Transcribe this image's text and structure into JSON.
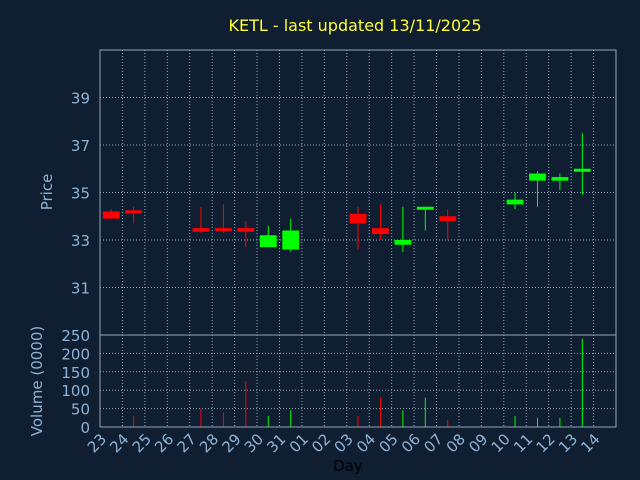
{
  "chart_data": {
    "type": "candlestick",
    "title": "KETL - last updated 13/11/2025",
    "xlabel": "Day",
    "price_panel": {
      "ylabel": "Price",
      "ylim": [
        29.0,
        41.0
      ],
      "yticks": [
        31,
        33,
        35,
        37,
        39
      ]
    },
    "volume_panel": {
      "ylabel": "Volume (0000)",
      "ylim": [
        0,
        250
      ],
      "yticks": [
        0,
        50,
        100,
        150,
        200,
        250
      ]
    },
    "days": [
      "23",
      "24",
      "25",
      "26",
      "27",
      "28",
      "29",
      "30",
      "31",
      "01",
      "02",
      "03",
      "04",
      "05",
      "06",
      "07",
      "08",
      "09",
      "10",
      "11",
      "12",
      "13",
      "14"
    ],
    "candles": [
      {
        "day": "23",
        "open": 34.2,
        "close": 33.9,
        "high": 34.3,
        "low": 33.9,
        "volume": 0
      },
      {
        "day": "24",
        "open": 34.25,
        "close": 34.2,
        "high": 34.4,
        "low": 33.7,
        "volume": 30
      },
      {
        "day": "27",
        "open": 33.5,
        "close": 33.35,
        "high": 34.4,
        "low": 33.3,
        "volume": 50
      },
      {
        "day": "28",
        "open": 33.5,
        "close": 33.45,
        "high": 34.5,
        "low": 33.3,
        "volume": 40
      },
      {
        "day": "29",
        "open": 33.5,
        "close": 33.35,
        "high": 33.8,
        "low": 32.7,
        "volume": 125
      },
      {
        "day": "30",
        "open": 32.7,
        "close": 33.2,
        "high": 33.6,
        "low": 32.7,
        "volume": 30
      },
      {
        "day": "31",
        "open": 32.6,
        "close": 33.4,
        "high": 33.9,
        "low": 32.5,
        "volume": 45
      },
      {
        "day": "03",
        "open": 34.1,
        "close": 33.7,
        "high": 34.4,
        "low": 32.6,
        "volume": 30
      },
      {
        "day": "04",
        "open": 33.5,
        "close": 33.25,
        "high": 34.5,
        "low": 33.0,
        "volume": 80
      },
      {
        "day": "05",
        "open": 32.8,
        "close": 33.0,
        "high": 34.4,
        "low": 32.5,
        "volume": 45
      },
      {
        "day": "06",
        "open": 34.35,
        "close": 34.4,
        "high": 34.4,
        "low": 33.4,
        "volume": 80
      },
      {
        "day": "07",
        "open": 34.0,
        "close": 33.8,
        "high": 34.3,
        "low": 33.0,
        "volume": 20
      },
      {
        "day": "10",
        "open": 34.5,
        "close": 34.7,
        "high": 35.0,
        "low": 34.3,
        "volume": 30
      },
      {
        "day": "11",
        "open": 35.5,
        "close": 35.8,
        "high": 35.9,
        "low": 34.4,
        "volume": 25
      },
      {
        "day": "12",
        "open": 35.5,
        "close": 35.65,
        "high": 35.8,
        "low": 35.1,
        "volume": 25
      },
      {
        "day": "13",
        "open": 35.95,
        "close": 36.0,
        "high": 37.5,
        "low": 34.9,
        "volume": 240
      }
    ],
    "colors": {
      "background": "#0f1e30",
      "grid": "#8fa8c0",
      "up": "#00ff00",
      "down": "#ff0000",
      "title": "#ffff33",
      "text": "#8fb3d6"
    },
    "grid": true
  }
}
